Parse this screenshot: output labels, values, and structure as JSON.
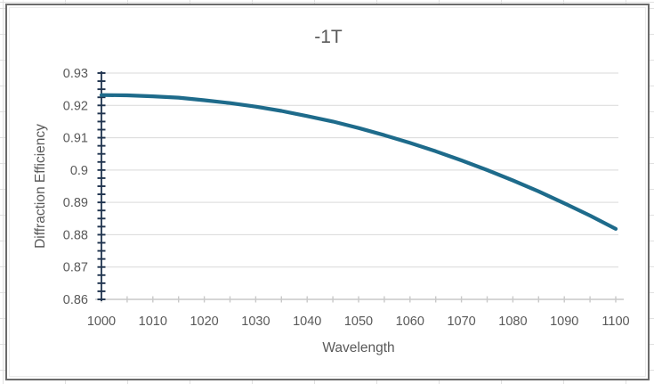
{
  "colors": {
    "series_teal": "#1e6b8b",
    "axis_navy": "#20344f",
    "x_axis_gray": "#c9c9c9",
    "gridline": "#d9d9d9",
    "text_gray": "#595959",
    "chart_border": "#6b6b6b",
    "sheet_gridline": "#e0e0e0"
  },
  "chart_data": {
    "type": "line",
    "title": "-1T",
    "xlabel": "Wavelength",
    "ylabel": "Diffraction Efficiency",
    "xlim": [
      1000,
      1100
    ],
    "ylim": [
      0.86,
      0.93
    ],
    "x_major_unit": 10,
    "x_minor_unit": 5,
    "y_major_unit": 0.01,
    "y_minor_unit": 0.0025,
    "grid": "horizontal-major",
    "legend": "none",
    "x_tick_labels": [
      "1000",
      "1010",
      "1020",
      "1030",
      "1040",
      "1050",
      "1060",
      "1070",
      "1080",
      "1090",
      "1100"
    ],
    "y_tick_labels": [
      "0.86",
      "0.87",
      "0.88",
      "0.89",
      "0.9",
      "0.91",
      "0.92",
      "0.93"
    ],
    "series": [
      {
        "name": "-1T",
        "color": "#1e6b8b",
        "x": [
          1000,
          1005,
          1010,
          1015,
          1020,
          1025,
          1030,
          1035,
          1040,
          1045,
          1050,
          1055,
          1060,
          1065,
          1070,
          1075,
          1080,
          1085,
          1090,
          1095,
          1100
        ],
        "y": [
          0.9232,
          0.9231,
          0.9228,
          0.9224,
          0.9216,
          0.9207,
          0.9196,
          0.9183,
          0.9167,
          0.915,
          0.913,
          0.9108,
          0.9084,
          0.9058,
          0.903,
          0.9,
          0.8968,
          0.8934,
          0.8897,
          0.8859,
          0.8818
        ]
      }
    ]
  }
}
